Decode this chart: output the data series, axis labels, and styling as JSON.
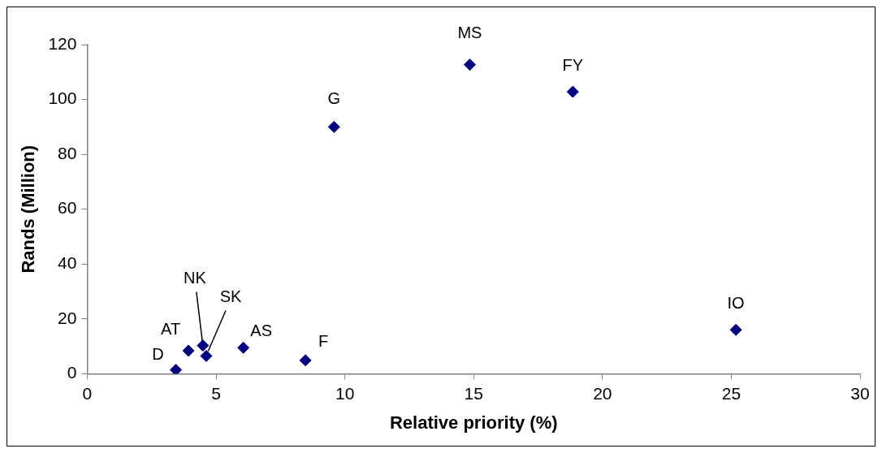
{
  "chart_data": {
    "type": "scatter",
    "xlabel": "Relative priority (%)",
    "ylabel": "Rands (Million)",
    "x": [
      3.44,
      3.93,
      4.49,
      4.62,
      6.06,
      8.47,
      9.58,
      14.85,
      18.85,
      25.18
    ],
    "values": [
      1.4,
      8.4,
      10.3,
      6.5,
      9.5,
      4.9,
      90.0,
      112.7,
      102.8,
      16.0
    ],
    "color": "#000080",
    "marker": "diamond",
    "legend": false,
    "grid": false,
    "xlim": [
      0,
      30
    ],
    "xticks": [
      0,
      5,
      10,
      15,
      20,
      25,
      30
    ],
    "ylim": [
      0,
      120
    ],
    "yticks": [
      0,
      20,
      40,
      60,
      80,
      100,
      120
    ],
    "annotations": [
      {
        "text": "D",
        "x": 3.44,
        "y": 1.4
      },
      {
        "text": "AT",
        "x": 3.93,
        "y": 8.4
      },
      {
        "text": "NK",
        "x": 4.49,
        "y": 10.3
      },
      {
        "text": "SK",
        "x": 4.62,
        "y": 6.5
      },
      {
        "text": "AS",
        "x": 6.06,
        "y": 9.5
      },
      {
        "text": "F",
        "x": 8.47,
        "y": 4.9
      },
      {
        "text": "G",
        "x": 9.58,
        "y": 90.0
      },
      {
        "text": "MS",
        "x": 14.85,
        "y": 112.7
      },
      {
        "text": "FY",
        "x": 18.85,
        "y": 102.8
      },
      {
        "text": "IO",
        "x": 25.18,
        "y": 16.0
      }
    ]
  }
}
